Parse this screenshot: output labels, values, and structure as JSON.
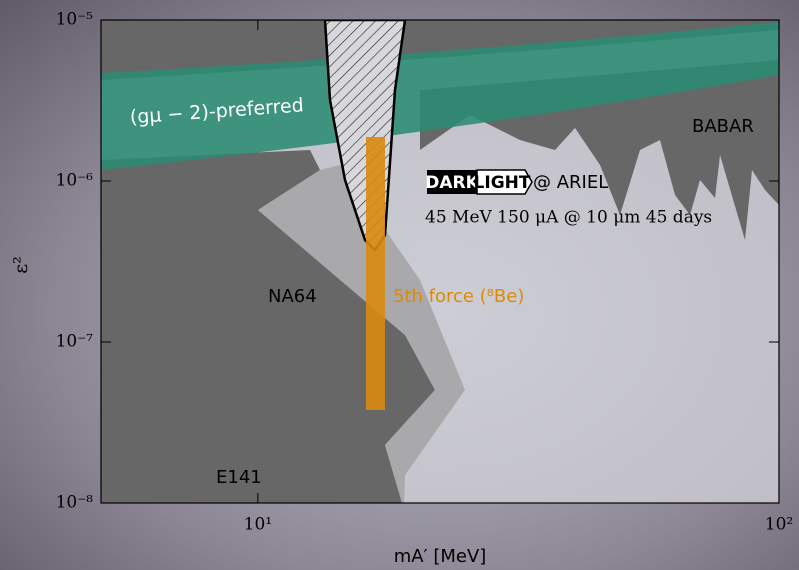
{
  "chart_data": {
    "type": "exclusion",
    "xlabel": "mA′ [MeV]",
    "ylabel": "ε²",
    "xscale": "log",
    "yscale": "log",
    "xlim": [
      5,
      100
    ],
    "ylim": [
      1e-08,
      1e-05
    ],
    "xticks": [
      {
        "value": 10,
        "label": "10¹"
      },
      {
        "value": 100,
        "label": "10²"
      }
    ],
    "yticks": [
      {
        "value": 1e-08,
        "label": "10⁻⁸"
      },
      {
        "value": 1e-07,
        "label": "10⁻⁷"
      },
      {
        "value": 1e-06,
        "label": "10⁻⁶"
      },
      {
        "value": 1e-05,
        "label": "10⁻⁵"
      }
    ],
    "annotations": {
      "gm2": "(gμ − 2)-preferred",
      "babar": "BABAR",
      "logo_dark": "DARK",
      "logo_light": "LIGHT",
      "ariel": "@ ARIEL",
      "params": "45 MeV  150 μA @ 10 μm  45 days",
      "na64": "NA64",
      "fifth_force": "5th force (⁸Be)",
      "e141": "E141"
    }
  }
}
